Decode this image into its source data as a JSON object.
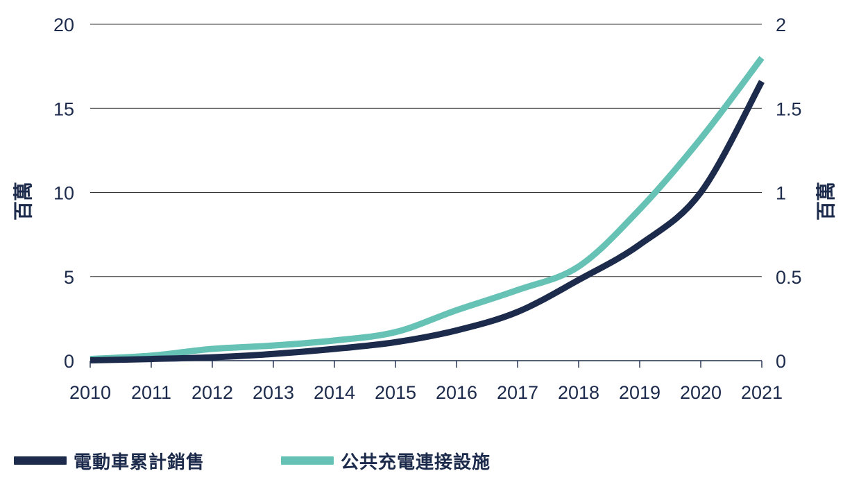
{
  "chart_data": {
    "type": "line",
    "x": [
      2010,
      2011,
      2012,
      2013,
      2014,
      2015,
      2016,
      2017,
      2018,
      2019,
      2020,
      2021
    ],
    "x_ticks": [
      "2010",
      "2011",
      "2012",
      "2013",
      "2014",
      "2015",
      "2016",
      "2017",
      "2018",
      "2019",
      "2020",
      "2021"
    ],
    "y_left": {
      "label": "百萬",
      "ylim": [
        0,
        20
      ],
      "ticks": [
        "0",
        "5",
        "10",
        "15",
        "20"
      ]
    },
    "y_right": {
      "label": "百萬",
      "ylim": [
        0,
        2
      ],
      "ticks": [
        "0",
        "0.5",
        "1",
        "1.5",
        "2"
      ]
    },
    "grid": true,
    "legend_position": "bottom",
    "series": [
      {
        "name": "電動車累計銷售",
        "axis": "left",
        "color": "#1c2a4b",
        "values": [
          0.02,
          0.1,
          0.2,
          0.4,
          0.7,
          1.1,
          1.8,
          2.9,
          4.8,
          6.9,
          10.0,
          16.6
        ]
      },
      {
        "name": "公共充電連接設施",
        "axis": "right",
        "color": "#66c2b5",
        "values": [
          0.01,
          0.03,
          0.07,
          0.09,
          0.12,
          0.17,
          0.3,
          0.42,
          0.56,
          0.9,
          1.32,
          1.8
        ]
      }
    ]
  }
}
